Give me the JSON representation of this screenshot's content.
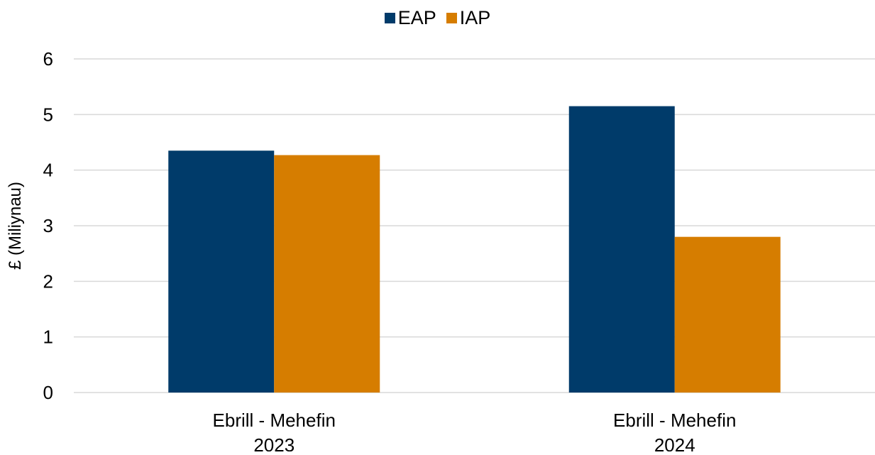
{
  "chart_data": {
    "type": "bar",
    "categories": [
      [
        "Ebrill - Mehefin",
        "2023"
      ],
      [
        "Ebrill - Mehefin",
        "2024"
      ]
    ],
    "series": [
      {
        "name": "EAP",
        "color": "#003B6A",
        "values": [
          4.35,
          5.15
        ]
      },
      {
        "name": "IAP",
        "color": "#D67D00",
        "values": [
          4.27,
          2.8
        ]
      }
    ],
    "ylabel": "£ (Miliynau)",
    "ylim": [
      0,
      6
    ],
    "yticks": [
      "0",
      "1",
      "2",
      "3",
      "4",
      "5",
      "6"
    ],
    "grid": true,
    "legend": "top-center"
  }
}
